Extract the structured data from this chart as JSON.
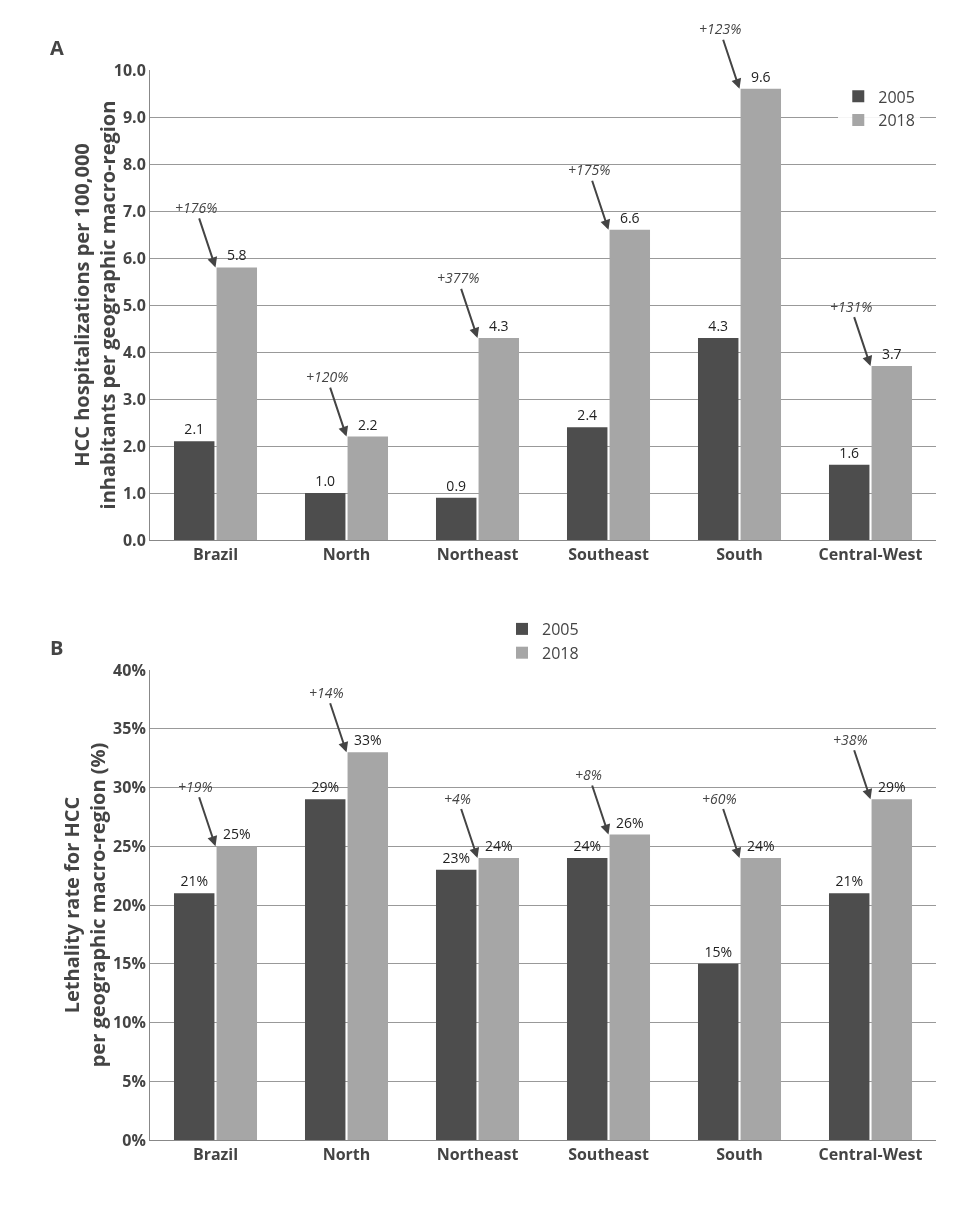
{
  "chart_data": [
    {
      "type": "bar",
      "title": "A",
      "ylabel": "HCC hospitalizations per 100,000\ninhabitants per geographic macro-region",
      "categories": [
        "Brazil",
        "North",
        "Northeast",
        "Southeast",
        "South",
        "Central-West"
      ],
      "series": [
        {
          "name": "2005",
          "color": "#4d4d4d",
          "values": [
            2.1,
            1.0,
            0.9,
            2.4,
            4.3,
            1.6
          ],
          "value_labels": [
            "2.1",
            "1.0",
            "0.9",
            "2.4",
            "4.3",
            "1.6"
          ]
        },
        {
          "name": "2018",
          "color": "#a6a6a6",
          "values": [
            5.8,
            2.2,
            4.3,
            6.6,
            9.6,
            3.7
          ],
          "value_labels": [
            "5.8",
            "2.2",
            "4.3",
            "6.6",
            "9.6",
            "3.7"
          ]
        }
      ],
      "ylim": [
        0,
        10
      ],
      "yticks": [
        {
          "value": 0,
          "label": "0.0"
        },
        {
          "value": 1,
          "label": "1.0"
        },
        {
          "value": 2,
          "label": "2.0"
        },
        {
          "value": 3,
          "label": "3.0"
        },
        {
          "value": 4,
          "label": "4.0"
        },
        {
          "value": 5,
          "label": "5.0"
        },
        {
          "value": 6,
          "label": "6.0"
        },
        {
          "value": 7,
          "label": "7.0"
        },
        {
          "value": 8,
          "label": "8.0"
        },
        {
          "value": 9,
          "label": "9.0"
        },
        {
          "value": 10,
          "label": "10.0"
        }
      ],
      "grid": "y",
      "legend": "top right",
      "annotations": [
        {
          "text": "+176%",
          "x": "Brazil",
          "y": 5.8
        },
        {
          "text": "+120%",
          "x": "North",
          "y": 2.2
        },
        {
          "text": "+377%",
          "x": "Northeast",
          "y": 4.3
        },
        {
          "text": "+175%",
          "x": "Southeast",
          "y": 6.6
        },
        {
          "text": "+123%",
          "x": "South",
          "y": 9.6
        },
        {
          "text": "+131%",
          "x": "Central-West",
          "y": 3.7
        }
      ]
    },
    {
      "type": "bar",
      "title": "B",
      "ylabel": "Lethality rate for HCC\nper geographic macro-region (%)",
      "categories": [
        "Brazil",
        "North",
        "Northeast",
        "Southeast",
        "South",
        "Central-West"
      ],
      "series": [
        {
          "name": "2005",
          "color": "#4d4d4d",
          "values": [
            21,
            29,
            23,
            24,
            15,
            21
          ],
          "value_labels": [
            "21%",
            "29%",
            "23%",
            "24%",
            "15%",
            "21%"
          ]
        },
        {
          "name": "2018",
          "color": "#a6a6a6",
          "values": [
            25,
            33,
            24,
            26,
            24,
            29
          ],
          "value_labels": [
            "25%",
            "33%",
            "24%",
            "26%",
            "24%",
            "29%"
          ]
        }
      ],
      "ylim": [
        0,
        40
      ],
      "yticks": [
        {
          "value": 0,
          "label": "0%"
        },
        {
          "value": 5,
          "label": "5%"
        },
        {
          "value": 10,
          "label": "10%"
        },
        {
          "value": 15,
          "label": "15%"
        },
        {
          "value": 20,
          "label": "20%"
        },
        {
          "value": 25,
          "label": "25%"
        },
        {
          "value": 30,
          "label": "30%"
        },
        {
          "value": 35,
          "label": "35%"
        },
        {
          "value": 40,
          "label": "40%"
        }
      ],
      "grid": "y",
      "legend": "top",
      "annotations": [
        {
          "text": "+19%",
          "x": "Brazil",
          "y": 25
        },
        {
          "text": "+14%",
          "x": "North",
          "y": 33
        },
        {
          "text": "+4%",
          "x": "Northeast",
          "y": 24
        },
        {
          "text": "+8%",
          "x": "Southeast",
          "y": 26
        },
        {
          "text": "+60%",
          "x": "South",
          "y": 24
        },
        {
          "text": "+38%",
          "x": "Central-West",
          "y": 29
        }
      ]
    }
  ]
}
